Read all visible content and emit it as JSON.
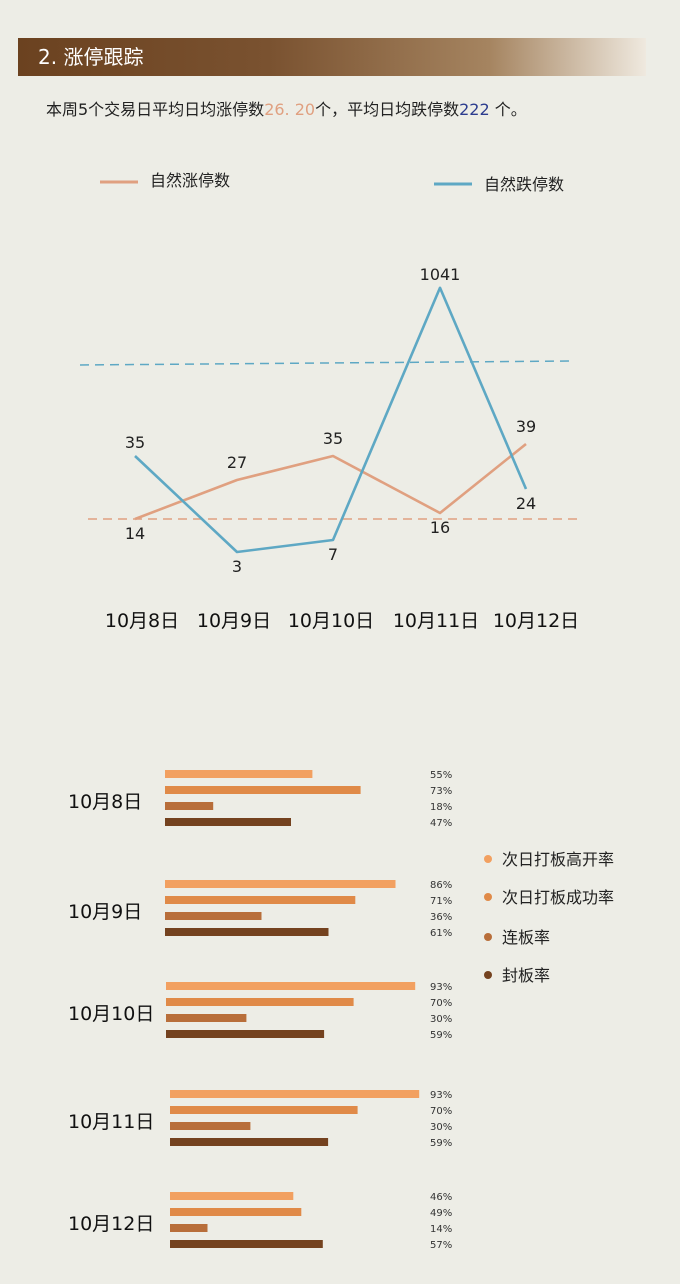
{
  "section": {
    "title": "2. 涨停跟踪"
  },
  "summary": {
    "prefix": "本周5个交易日平均日均涨停数",
    "limit_up_avg": "26. 20",
    "middle": "个，平均日均跌停数",
    "limit_down_avg": "222",
    "suffix": " 个。"
  },
  "colors": {
    "limit_up": "#e0a080",
    "limit_down": "#5ea8c4",
    "next_day_high_open": "#f2a060",
    "next_day_success": "#e08a48",
    "consecutive": "#b86e3a",
    "seal": "#74421f"
  },
  "chart_data": [
    {
      "type": "line",
      "categories": [
        "10月8日",
        "10月9日",
        "10月10日",
        "10月11日",
        "10月12日"
      ],
      "series": [
        {
          "name": "自然涨停数",
          "values": [
            14,
            27,
            35,
            16,
            39
          ]
        },
        {
          "name": "自然跌停数",
          "values": [
            35,
            3,
            7,
            1041,
            24
          ]
        }
      ],
      "reference_lines": [
        "dashed",
        "dashed"
      ],
      "legend": "top"
    },
    {
      "type": "bar",
      "orientation": "horizontal",
      "categories": [
        "10月8日",
        "10月9日",
        "10月10日",
        "10月11日",
        "10月12日"
      ],
      "series": [
        {
          "name": "次日打板高开率",
          "values": [
            55,
            86,
            93,
            93,
            46
          ],
          "labels": [
            "55%",
            "86%",
            "93%",
            "93%",
            "46%"
          ]
        },
        {
          "name": "次日打板成功率",
          "values": [
            73,
            71,
            70,
            70,
            49
          ],
          "labels": [
            "73%",
            "71%",
            "70%",
            "70%",
            "49%"
          ]
        },
        {
          "name": "连板率",
          "values": [
            18,
            36,
            30,
            30,
            14
          ],
          "labels": [
            "18%",
            "36%",
            "30%",
            "30%",
            "14%"
          ]
        },
        {
          "name": "封板率",
          "values": [
            47,
            61,
            59,
            59,
            57
          ],
          "labels": [
            "47%",
            "61%",
            "59%",
            "59%",
            "57%"
          ]
        }
      ],
      "legend": "right"
    }
  ]
}
